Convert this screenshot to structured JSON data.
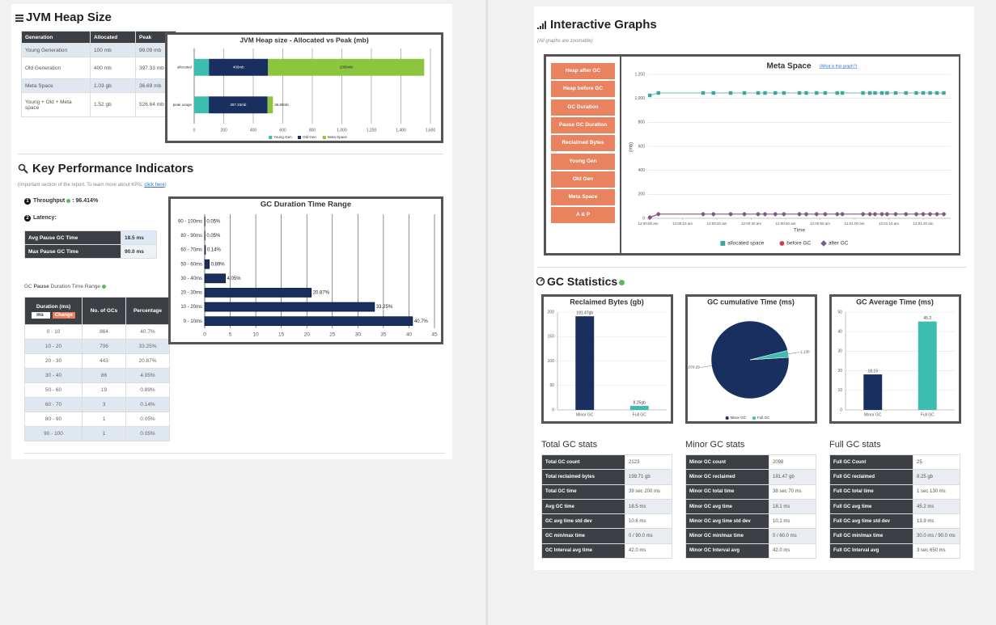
{
  "heap": {
    "title": "JVM Heap Size",
    "table": {
      "header": [
        "Generation",
        "Allocated",
        "Peak"
      ],
      "rows": [
        [
          "Young Generation",
          "100 mb",
          "99.09 mb"
        ],
        [
          "Old Generation",
          "400 mb",
          "397.33 mb"
        ],
        [
          "Meta Space",
          "1.03 gb",
          "36.69 mb"
        ],
        [
          "Young + Old + Meta space",
          "1.52 gb",
          "526.64 mb"
        ]
      ]
    }
  },
  "kpi": {
    "title": "Key Performance Indicators",
    "note": "(Important section of the report. To learn more about KPIs, ",
    "note_link": "click here",
    "note_end": ")",
    "throughput": {
      "num": "1",
      "label": "Throughput",
      "value": ": 96.414%"
    },
    "latency": {
      "num": "2",
      "label": "Latency:"
    },
    "latency_table": [
      [
        "Avg Pause GC Time",
        "18.5 ms"
      ],
      [
        "Max Pause GC Time",
        "90.0 ms"
      ]
    ],
    "range_title": [
      "GC ",
      "Pause",
      " Duration Time Range"
    ],
    "range_table": {
      "header": [
        "Duration (ms)",
        "No. of GCs",
        "Percentage"
      ],
      "unit": "ms",
      "button": "Change",
      "rows": [
        [
          "0 - 10",
          "864",
          "40.7%"
        ],
        [
          "10 - 20",
          "706",
          "33.25%"
        ],
        [
          "20 - 30",
          "443",
          "20.87%"
        ],
        [
          "30 - 40",
          "86",
          "4.05%"
        ],
        [
          "50 - 60",
          "19",
          "0.89%"
        ],
        [
          "60 - 70",
          "3",
          "0.14%"
        ],
        [
          "80 - 90",
          "1",
          "0.05%"
        ],
        [
          "90 - 100",
          "1",
          "0.05%"
        ]
      ]
    }
  },
  "interactive": {
    "title": "Interactive Graphs",
    "note": "(All graphs are zoomable)",
    "buttons": [
      "Heap after GC",
      "Heap before GC",
      "GC Duration",
      "Pause GC Duration",
      "Reclaimed Bytes",
      "Young Gen",
      "Old Gen",
      "Meta Space",
      "A & P"
    ],
    "help_link": "(What is this graph?)"
  },
  "gc_stats": {
    "title": "GC Statistics",
    "tables": [
      {
        "title": "Total GC stats",
        "rows": [
          [
            "Total GC count",
            "2123"
          ],
          [
            "Total reclaimed bytes",
            "199.71 gb"
          ],
          [
            "Total GC time",
            "39 sec 200 ms"
          ],
          [
            "Avg GC time",
            "18.5 ms"
          ],
          [
            "GC avg time std dev",
            "10.6 ms"
          ],
          [
            "GC min/max time",
            "0 / 90.0 ms"
          ],
          [
            "GC Interval avg time",
            "42.0 ms"
          ]
        ]
      },
      {
        "title": "Minor GC stats",
        "rows": [
          [
            "Minor GC count",
            "2098"
          ],
          [
            "Minor GC reclaimed",
            "191.47 gb"
          ],
          [
            "Minor GC total time",
            "38 sec 70 ms"
          ],
          [
            "Minor GC avg time",
            "18.1 ms"
          ],
          [
            "Minor GC avg time std dev",
            "10.1 ms"
          ],
          [
            "Minor GC min/max time",
            "0 / 60.0 ms"
          ],
          [
            "Minor GC Interval avg",
            "42.0 ms"
          ]
        ]
      },
      {
        "title": "Full GC stats",
        "rows": [
          [
            "Full GC Count",
            "25"
          ],
          [
            "Full GC reclaimed",
            "8.25 gb"
          ],
          [
            "Full GC total time",
            "1 sec 130 ms"
          ],
          [
            "Full GC avg time",
            "45.2 ms"
          ],
          [
            "Full GC avg time std dev",
            "13.9 ms"
          ],
          [
            "Full GC min/max time",
            "30.0 ms / 90.0 ms"
          ],
          [
            "Full GC Interval avg",
            "3 sec 650 ms"
          ]
        ]
      }
    ]
  },
  "chart_data": [
    {
      "type": "bar",
      "orientation": "horizontal",
      "stacked": true,
      "title": "JVM Heap size - Allocated vs Peak (mb)",
      "categories": [
        "allocated",
        "peak usage"
      ],
      "series": [
        {
          "name": "Young Gen",
          "color": "#3dbdb0",
          "values": [
            100,
            99.09
          ],
          "value_labels": [
            "100mb",
            "99.09mb"
          ]
        },
        {
          "name": "Old Gen",
          "color": "#192f5f",
          "values": [
            400,
            397.33
          ],
          "value_labels": [
            "400mb",
            "397.33mb"
          ]
        },
        {
          "name": "Meta Space",
          "color": "#8cc63e",
          "values": [
            1058,
            36.69
          ],
          "value_labels": [
            "1058mb",
            "36.69mb"
          ]
        }
      ],
      "xlim": [
        0,
        1600
      ],
      "xticks": [
        0,
        200,
        400,
        600,
        800,
        {
          "value": 1000,
          "label": "1,000"
        },
        {
          "value": 1200,
          "label": "1,200"
        },
        {
          "value": 1400,
          "label": "1,400"
        },
        {
          "value": 1600,
          "label": "1,600"
        }
      ],
      "grid": true,
      "legend": "bottom"
    },
    {
      "type": "bar",
      "orientation": "horizontal",
      "title": "GC Duration Time Range",
      "categories": [
        "90 - 100ms",
        "80 - 90ms",
        "60 - 70ms",
        "50 - 60ms",
        "30 - 40ms",
        "20 - 30ms",
        "10 - 20ms",
        "0 - 10ms"
      ],
      "values": [
        0.05,
        0.05,
        0.14,
        0.89,
        4.05,
        20.87,
        33.25,
        40.7
      ],
      "value_labels": [
        "0.05%",
        "0.05%",
        "0.14%",
        "0.89%",
        "4.05%",
        "20.87%",
        "33.25%",
        "40.7%"
      ],
      "color": "#192f5f",
      "xlim": [
        0,
        45
      ],
      "xticks": [
        0,
        5,
        10,
        15,
        20,
        25,
        30,
        35,
        40,
        45
      ],
      "grid": true
    },
    {
      "type": "line",
      "title": "Meta Space",
      "xlabel": "Time",
      "ylabel": "(mb)",
      "x": [
        0.5,
        3,
        16,
        19,
        24,
        28,
        32,
        34,
        37,
        39.5,
        44,
        46,
        49,
        51.5,
        55,
        56.5,
        62.5,
        64.5,
        66,
        68,
        69.5,
        72,
        75,
        78,
        80,
        82,
        84,
        86
      ],
      "series": [
        {
          "name": "allocated space",
          "color": "#3aa6a0",
          "marker": "square",
          "values": [
            1025,
            1045,
            1045,
            1045,
            1045,
            1045,
            1045,
            1045,
            1045,
            1045,
            1045,
            1045,
            1045,
            1045,
            1045,
            1045,
            1045,
            1045,
            1045,
            1045,
            1045,
            1045,
            1045,
            1045,
            1045,
            1045,
            1045,
            1045
          ]
        },
        {
          "name": "before GC",
          "color": "#c9404b",
          "marker": "circle",
          "values": [
            10,
            36,
            36,
            36,
            36,
            36,
            36,
            36,
            36,
            36,
            36,
            36,
            36,
            36,
            36,
            36,
            36,
            36,
            36,
            36,
            36,
            36,
            36,
            36,
            36,
            36,
            36,
            36
          ]
        },
        {
          "name": "after GC",
          "color": "#7a5a8c",
          "marker": "diamond",
          "values": [
            5,
            34,
            34,
            34,
            34,
            34,
            34,
            34,
            34,
            34,
            34,
            34,
            34,
            34,
            34,
            34,
            34,
            34,
            34,
            34,
            34,
            34,
            34,
            34,
            34,
            34,
            34,
            34
          ]
        }
      ],
      "xlim": [
        0,
        88
      ],
      "xticks": [
        {
          "value": 0,
          "label": "12:00:00 am"
        },
        {
          "value": 10,
          "label": "12:00:10 am"
        },
        {
          "value": 20,
          "label": "12:00:20 am"
        },
        {
          "value": 30,
          "label": "12:00:30 am"
        },
        {
          "value": 40,
          "label": "12:00:40 am"
        },
        {
          "value": 50,
          "label": "12:00:50 am"
        },
        {
          "value": 60,
          "label": "12:01:00 am"
        },
        {
          "value": 70,
          "label": "12:01:10 am"
        },
        {
          "value": 80,
          "label": "12:01:20 am"
        }
      ],
      "ylim": [
        0,
        1200
      ],
      "yticks": [
        0,
        200,
        400,
        600,
        800,
        {
          "value": 1000,
          "label": "1,000"
        },
        {
          "value": 1200,
          "label": "1,200"
        }
      ],
      "grid": true,
      "legend": "bottom"
    },
    {
      "type": "bar",
      "title": "Reclaimed Bytes (gb)",
      "categories": [
        "Minor GC",
        "Full GC"
      ],
      "values": [
        191.47,
        8.25
      ],
      "value_labels": [
        "191.47gb",
        "8.25gb"
      ],
      "colors": [
        "#192f5f",
        "#3dbdb0"
      ],
      "ylim": [
        0,
        200
      ],
      "yticks": [
        0,
        50,
        100,
        150,
        200
      ],
      "grid": true
    },
    {
      "type": "pie",
      "title": "GC cumulative Time (ms)",
      "categories": [
        "Minor GC",
        "Full GC"
      ],
      "values": [
        38070.29,
        1130
      ],
      "value_labels": [
        "38,070.29",
        "1,130"
      ],
      "colors": [
        "#192f5f",
        "#3dbdb0"
      ],
      "legend": "bottom"
    },
    {
      "type": "bar",
      "title": "GC Average Time (ms)",
      "categories": [
        "Minor GC",
        "Full GC"
      ],
      "values": [
        18.15,
        45.2
      ],
      "colors": [
        "#192f5f",
        "#3dbdb0"
      ],
      "ylim": [
        0,
        50
      ],
      "yticks": [
        0,
        10,
        20,
        30,
        40,
        50
      ],
      "grid": true
    }
  ]
}
